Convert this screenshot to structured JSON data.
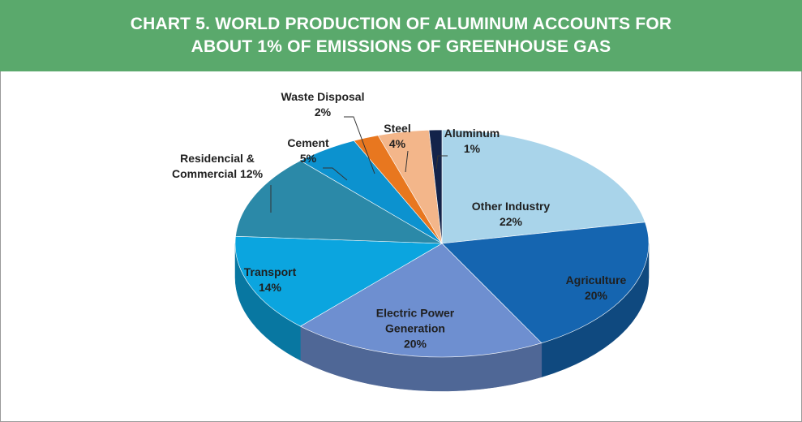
{
  "chart_data": {
    "type": "pie",
    "title": "CHART 5. WORLD PRODUCTION OF ALUMINUM ACCOUNTS FOR ABOUT 1% OF EMISSIONS OF GREENHOUSE GAS",
    "categories": [
      "Other Industry",
      "Agriculture",
      "Electric Power Generation",
      "Transport",
      "Residencial & Commercial",
      "Cement",
      "Waste Disposal",
      "Steel",
      "Aluminum"
    ],
    "values": [
      22,
      20,
      20,
      14,
      12,
      5,
      2,
      4,
      1
    ],
    "value_labels": [
      "22%",
      "20%",
      "20%",
      "14%",
      "12%",
      "5%",
      "2%",
      "4%",
      "1%"
    ],
    "colors": [
      "#a9d4ea",
      "#1565b0",
      "#6e8fd0",
      "#0ba5df",
      "#2b89a8",
      "#0c92cf",
      "#e8771f",
      "#f3b68a",
      "#13234a"
    ]
  }
}
